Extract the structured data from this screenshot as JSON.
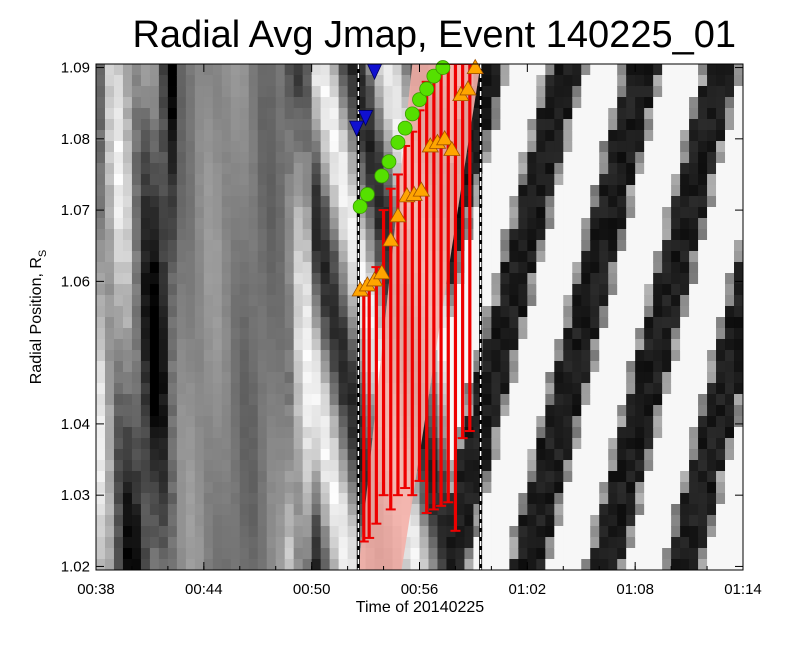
{
  "chart_data": {
    "type": "heatmap",
    "title": "Radial Avg Jmap, Event 140225_01",
    "xlabel": "Time of 20140225",
    "ylabel_main": "Radial Position, R",
    "ylabel_sub": "S",
    "x_ticks": [
      "00:38",
      "00:44",
      "00:50",
      "00:56",
      "01:02",
      "01:08",
      "01:14"
    ],
    "x_range_minutes": [
      38,
      74
    ],
    "y_ticks": [
      "1.02",
      "1.03",
      "1.04",
      "1.06",
      "1.07",
      "1.08",
      "1.09"
    ],
    "y_tick_values": [
      1.02,
      1.03,
      1.04,
      1.06,
      1.07,
      1.08,
      1.09
    ],
    "y_range": [
      1.0195,
      1.0905
    ],
    "window_start_minutes": 52.6,
    "window_end_minutes": 59.4,
    "green_circles": [
      {
        "t": 52.7,
        "r": 1.0705
      },
      {
        "t": 53.1,
        "r": 1.0722
      },
      {
        "t": 53.9,
        "r": 1.0748
      },
      {
        "t": 54.3,
        "r": 1.0768
      },
      {
        "t": 54.8,
        "r": 1.0795
      },
      {
        "t": 55.2,
        "r": 1.0815
      },
      {
        "t": 55.6,
        "r": 1.0835
      },
      {
        "t": 56.0,
        "r": 1.0855
      },
      {
        "t": 56.4,
        "r": 1.087
      },
      {
        "t": 56.8,
        "r": 1.0888
      },
      {
        "t": 57.3,
        "r": 1.09
      }
    ],
    "orange_triangles": [
      {
        "t": 52.7,
        "r": 1.0588
      },
      {
        "t": 53.1,
        "r": 1.0595
      },
      {
        "t": 53.5,
        "r": 1.0602
      },
      {
        "t": 53.9,
        "r": 1.0612
      },
      {
        "t": 54.4,
        "r": 1.0658
      },
      {
        "t": 54.8,
        "r": 1.0692
      },
      {
        "t": 55.3,
        "r": 1.072
      },
      {
        "t": 55.7,
        "r": 1.0722
      },
      {
        "t": 56.1,
        "r": 1.0728
      },
      {
        "t": 56.6,
        "r": 1.079
      },
      {
        "t": 57.0,
        "r": 1.0795
      },
      {
        "t": 57.4,
        "r": 1.08
      },
      {
        "t": 57.8,
        "r": 1.0785
      },
      {
        "t": 58.3,
        "r": 1.0862
      },
      {
        "t": 58.7,
        "r": 1.087
      },
      {
        "t": 59.1,
        "r": 1.09
      }
    ],
    "blue_triangles": [
      {
        "t": 52.5,
        "r": 1.0815
      },
      {
        "t": 53.0,
        "r": 1.083
      },
      {
        "t": 53.5,
        "r": 1.0895
      }
    ],
    "error_bars": [
      {
        "t": 52.9,
        "lo": 1.0235,
        "hi": 1.058
      },
      {
        "t": 53.2,
        "lo": 1.024,
        "hi": 1.06
      },
      {
        "t": 53.6,
        "lo": 1.026,
        "hi": 1.062
      },
      {
        "t": 54.0,
        "lo": 1.03,
        "hi": 1.07
      },
      {
        "t": 54.4,
        "lo": 1.028,
        "hi": 1.073
      },
      {
        "t": 54.8,
        "lo": 1.03,
        "hi": 1.075
      },
      {
        "t": 55.2,
        "lo": 1.031,
        "hi": 1.079
      },
      {
        "t": 55.6,
        "lo": 1.03,
        "hi": 1.081
      },
      {
        "t": 56.0,
        "lo": 1.032,
        "hi": 1.084
      },
      {
        "t": 56.4,
        "lo": 1.0275,
        "hi": 1.088
      },
      {
        "t": 56.8,
        "lo": 1.028,
        "hi": 1.0895
      },
      {
        "t": 57.2,
        "lo": 1.0285,
        "hi": 1.09
      },
      {
        "t": 57.6,
        "lo": 1.029,
        "hi": 1.0905
      },
      {
        "t": 58.0,
        "lo": 1.025,
        "hi": 1.0905
      },
      {
        "t": 58.4,
        "lo": 1.038,
        "hi": 1.0905
      },
      {
        "t": 58.8,
        "lo": 1.039,
        "hi": 1.0905
      }
    ],
    "colors": {
      "green": "#55e000",
      "orange": "#ffa500",
      "blue": "#1010d0",
      "red": "#ee0000",
      "highlight": "#f4b0a8"
    },
    "grid": false
  }
}
